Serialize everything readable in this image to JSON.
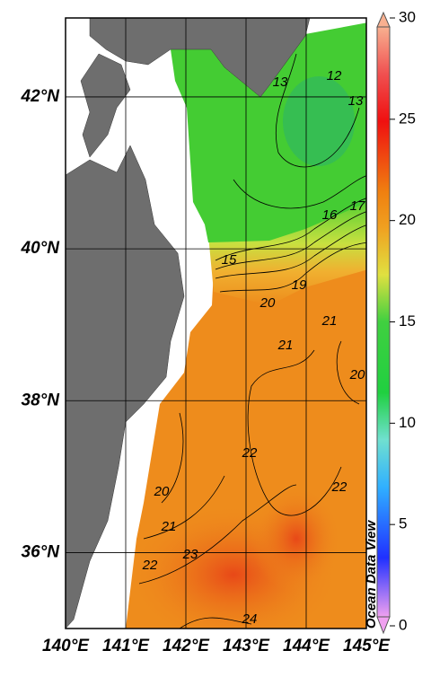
{
  "map": {
    "xlim": [
      140,
      145
    ],
    "ylim": [
      35,
      43.04
    ],
    "xticks": [
      {
        "value": 140,
        "label": "140°E"
      },
      {
        "value": 141,
        "label": "141°E"
      },
      {
        "value": 142,
        "label": "142°E"
      },
      {
        "value": 143,
        "label": "143°E"
      },
      {
        "value": 144,
        "label": "144°E"
      },
      {
        "value": 145,
        "label": "145°E"
      }
    ],
    "yticks": [
      {
        "value": 36,
        "label": "36°N"
      },
      {
        "value": 38,
        "label": "38°N"
      },
      {
        "value": 40,
        "label": "40°N"
      },
      {
        "value": 42,
        "label": "42°N"
      }
    ],
    "contour_labels": [
      13,
      12,
      13,
      16,
      17,
      15,
      19,
      20,
      21,
      21,
      20,
      22,
      22,
      20,
      21,
      23,
      22,
      24
    ],
    "watermark": "Ocean Data View"
  },
  "colorbar": {
    "lim": [
      0,
      30
    ],
    "ticks": [
      0,
      5,
      10,
      15,
      20,
      25,
      30
    ]
  }
}
